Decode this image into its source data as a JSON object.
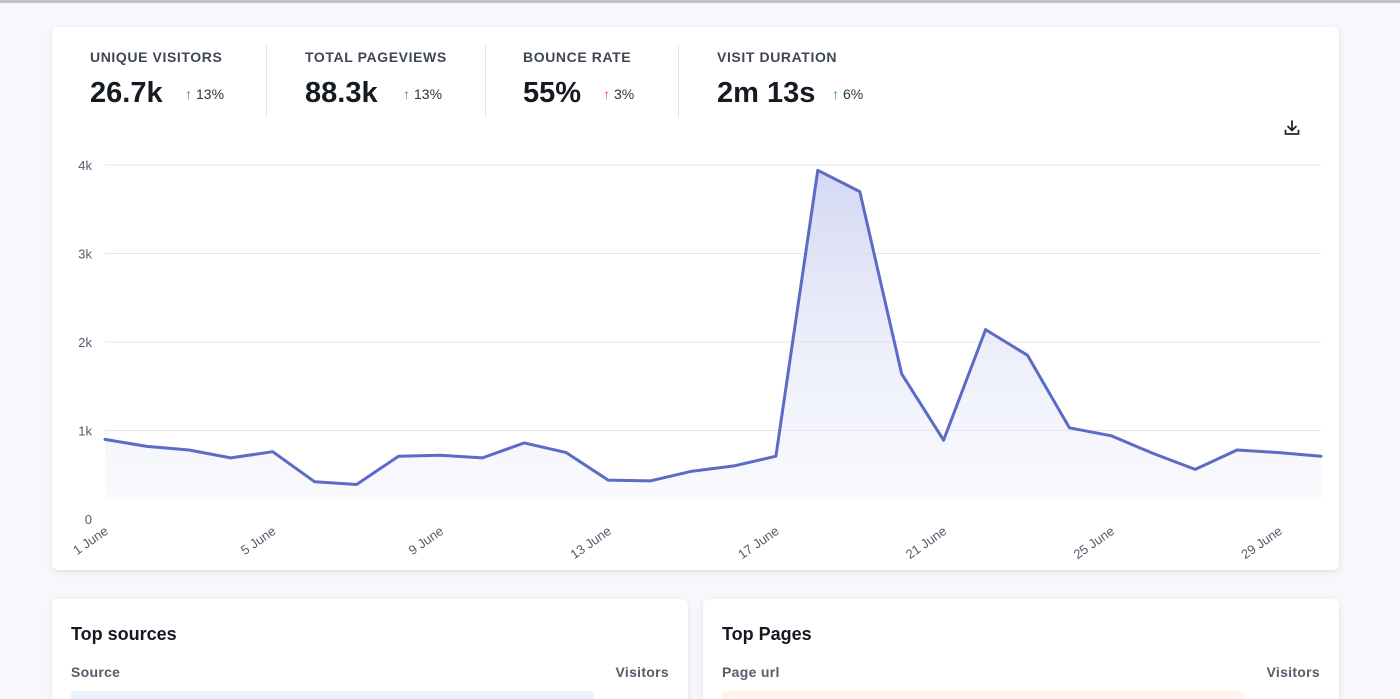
{
  "stats": [
    {
      "label": "UNIQUE VISITORS",
      "value": "26.7k",
      "change": "13%",
      "direction": "up",
      "tone": "good"
    },
    {
      "label": "TOTAL PAGEVIEWS",
      "value": "88.3k",
      "change": "13%",
      "direction": "up",
      "tone": "good"
    },
    {
      "label": "BOUNCE RATE",
      "value": "55%",
      "change": "3%",
      "direction": "up",
      "tone": "bad"
    },
    {
      "label": "VISIT DURATION",
      "value": "2m 13s",
      "change": "6%",
      "direction": "up",
      "tone": "good"
    }
  ],
  "icons": {
    "download": "download-icon",
    "arrow_up": "arrow-up-icon"
  },
  "colors": {
    "line": "#5b6bc6",
    "fill": "#e3e6f7",
    "good": "#1f9d55",
    "bad": "#e3514b"
  },
  "chart_data": {
    "type": "area",
    "title": "",
    "xlabel": "",
    "ylabel": "",
    "ylim": [
      0,
      4000
    ],
    "yticks": [
      0,
      1000,
      2000,
      3000,
      4000
    ],
    "ytick_labels": [
      "0",
      "1k",
      "2k",
      "3k",
      "4k"
    ],
    "grid": true,
    "x": [
      "1 June",
      "2 June",
      "3 June",
      "4 June",
      "5 June",
      "6 June",
      "7 June",
      "8 June",
      "9 June",
      "10 June",
      "11 June",
      "12 June",
      "13 June",
      "14 June",
      "15 June",
      "16 June",
      "17 June",
      "18 June",
      "19 June",
      "20 June",
      "21 June",
      "22 June",
      "23 June",
      "24 June",
      "25 June",
      "26 June",
      "27 June",
      "28 June",
      "29 June",
      "30 June"
    ],
    "xtick_labels": [
      "1 June",
      "5 June",
      "9 June",
      "13 June",
      "17 June",
      "21 June",
      "25 June",
      "29 June"
    ],
    "series": [
      {
        "values": [
          900,
          820,
          780,
          690,
          760,
          420,
          390,
          710,
          720,
          690,
          860,
          750,
          440,
          430,
          540,
          600,
          710,
          3940,
          3700,
          1640,
          890,
          2140,
          1850,
          1030,
          940,
          740,
          560,
          780,
          750,
          710
        ]
      }
    ]
  },
  "sources": {
    "title": "Top sources",
    "col_left": "Source",
    "col_right": "Visitors"
  },
  "pages": {
    "title": "Top Pages",
    "col_left": "Page url",
    "col_right": "Visitors"
  }
}
